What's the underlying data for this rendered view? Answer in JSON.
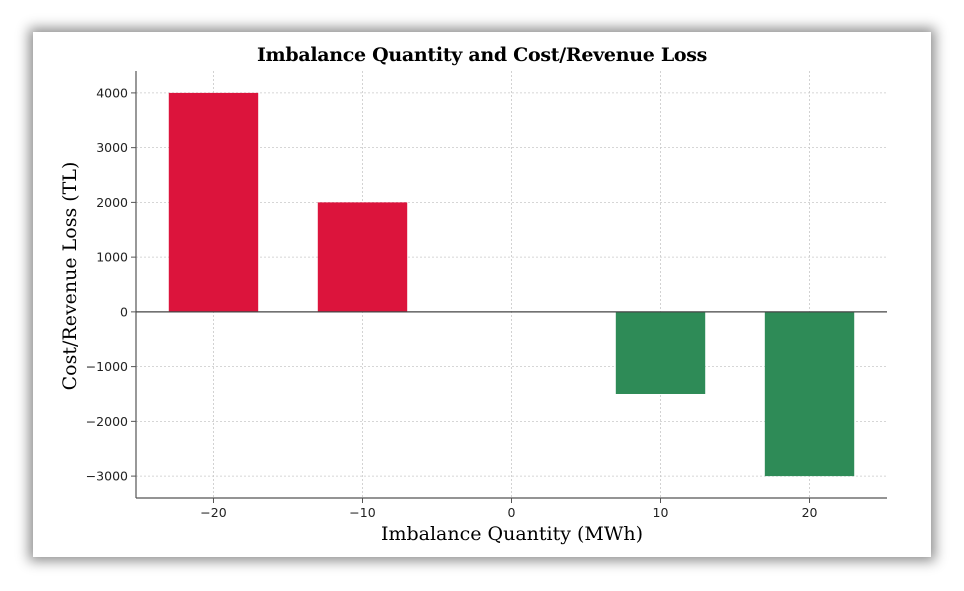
{
  "chart_data": {
    "type": "bar",
    "title": "Imbalance Quantity and Cost/Revenue Loss",
    "xlabel": "Imbalance Quantity (MWh)",
    "ylabel": "Cost/Revenue Loss (TL)",
    "x": [
      -20,
      -10,
      0,
      10,
      20
    ],
    "values": [
      4000,
      2000,
      0,
      -1500,
      -3000
    ],
    "bar_colors": [
      "#dc143c",
      "#dc143c",
      "#dc143c",
      "#2e8b57",
      "#2e8b57"
    ],
    "xticks": [
      -20,
      -10,
      0,
      10,
      20
    ],
    "xtick_labels": [
      "−20",
      "−10",
      "0",
      "10",
      "20"
    ],
    "yticks": [
      -3000,
      -2000,
      -1000,
      0,
      1000,
      2000,
      3000,
      4000
    ],
    "ytick_labels": [
      "−3000",
      "−2000",
      "−1000",
      "0",
      "1000",
      "2000",
      "3000",
      "4000"
    ],
    "xlim": [
      -25.2,
      25.2
    ],
    "ylim": [
      -3400,
      4400
    ],
    "bar_width": 6,
    "grid": true
  }
}
